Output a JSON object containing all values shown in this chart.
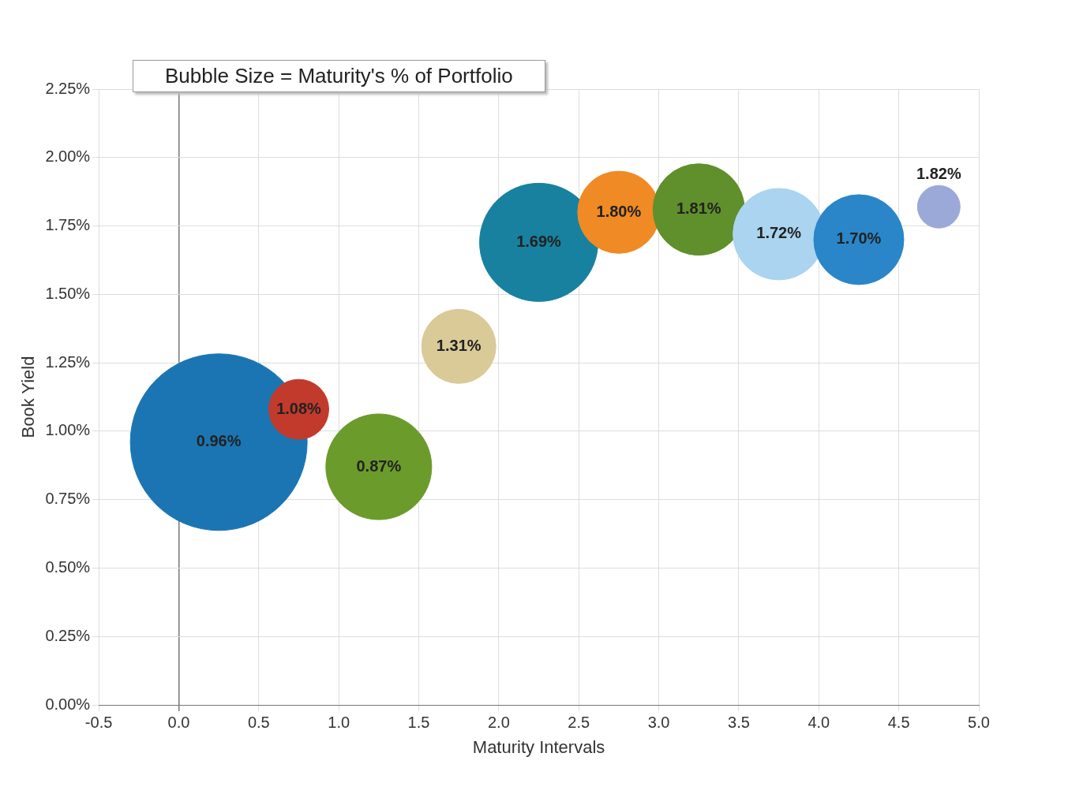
{
  "chart_data": {
    "type": "bubble",
    "xlabel": "Maturity Intervals",
    "ylabel": "Book Yield",
    "annotations": [
      "Bubble Size = Maturity's % of Portfolio"
    ],
    "x": [
      0.25,
      0.75,
      1.25,
      1.75,
      2.25,
      2.75,
      3.25,
      3.75,
      4.25,
      4.75
    ],
    "values": [
      0.96,
      1.08,
      0.87,
      1.31,
      1.69,
      1.8,
      1.81,
      1.72,
      1.7,
      1.82
    ],
    "value_labels": [
      "0.96%",
      "1.08%",
      "0.87%",
      "1.31%",
      "1.69%",
      "1.80%",
      "1.81%",
      "1.72%",
      "1.70%",
      "1.82%"
    ],
    "sizes": [
      1,
      0.115,
      0.358,
      0.176,
      0.448,
      0.216,
      0.268,
      0.268,
      0.259,
      0.058
    ],
    "colors": [
      "#1b75b3",
      "#c23a2c",
      "#6b9b2b",
      "#d9ca98",
      "#18819f",
      "#f08a24",
      "#5f902b",
      "#aad4ef",
      "#2a86c8",
      "#9ba9d9"
    ],
    "xlim": [
      -0.5,
      5
    ],
    "xticks": [
      {
        "value": -0.5,
        "label": "-0.5"
      },
      {
        "value": 0,
        "label": "0.0"
      },
      {
        "value": 0.5,
        "label": "0.5"
      },
      {
        "value": 1,
        "label": "1.0"
      },
      {
        "value": 1.5,
        "label": "1.5"
      },
      {
        "value": 2,
        "label": "2.0"
      },
      {
        "value": 2.5,
        "label": "2.5"
      },
      {
        "value": 3,
        "label": "3.0"
      },
      {
        "value": 3.5,
        "label": "3.5"
      },
      {
        "value": 4,
        "label": "4.0"
      },
      {
        "value": 4.5,
        "label": "4.5"
      },
      {
        "value": 5,
        "label": "5.0"
      }
    ],
    "ylim": [
      0,
      2.25
    ],
    "yticks": [
      {
        "value": 0,
        "label": "0.00%"
      },
      {
        "value": 0.25,
        "label": "0.25%"
      },
      {
        "value": 0.5,
        "label": "0.50%"
      },
      {
        "value": 0.75,
        "label": "0.75%"
      },
      {
        "value": 1,
        "label": "1.00%"
      },
      {
        "value": 1.25,
        "label": "1.25%"
      },
      {
        "value": 1.5,
        "label": "1.50%"
      },
      {
        "value": 1.75,
        "label": "1.75%"
      },
      {
        "value": 2,
        "label": "2.00%"
      },
      {
        "value": 2.25,
        "label": "2.25%"
      }
    ],
    "grid": true,
    "legend": false
  }
}
